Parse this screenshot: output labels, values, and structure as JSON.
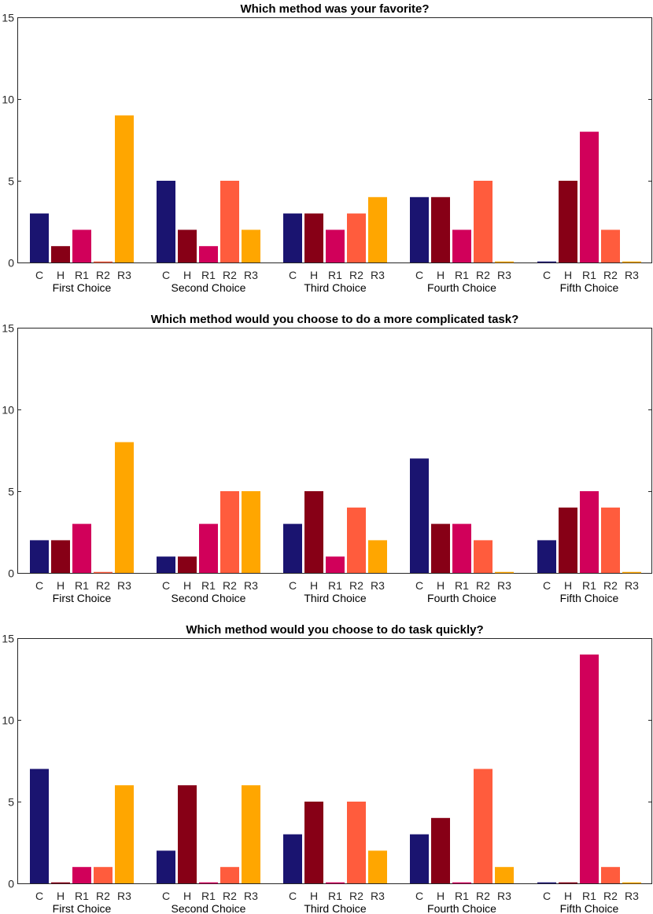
{
  "chart_data": [
    {
      "type": "bar",
      "title": "Which method was your favorite?",
      "groups": [
        "First Choice",
        "Second Choice",
        "Third Choice",
        "Fourth Choice",
        "Fifth Choice"
      ],
      "categories": [
        "C",
        "H",
        "R1",
        "R2",
        "R3"
      ],
      "series": [
        {
          "name": "C",
          "color": "#1a1470",
          "values": [
            3,
            5,
            3,
            4,
            0
          ]
        },
        {
          "name": "H",
          "color": "#870016",
          "values": [
            1,
            2,
            3,
            4,
            5
          ]
        },
        {
          "name": "R1",
          "color": "#d1005a",
          "values": [
            2,
            1,
            2,
            2,
            8
          ]
        },
        {
          "name": "R2",
          "color": "#ff5c3d",
          "values": [
            0,
            5,
            3,
            5,
            2
          ]
        },
        {
          "name": "R3",
          "color": "#ffa600",
          "values": [
            9,
            2,
            4,
            0,
            0
          ]
        }
      ],
      "ylim": [
        0,
        15
      ],
      "yticks": [
        0,
        5,
        10,
        15
      ],
      "xlabel": "",
      "ylabel": ""
    },
    {
      "type": "bar",
      "title": "Which method would you choose to do a more complicated task?",
      "groups": [
        "First Choice",
        "Second Choice",
        "Third Choice",
        "Fourth Choice",
        "Fifth Choice"
      ],
      "categories": [
        "C",
        "H",
        "R1",
        "R2",
        "R3"
      ],
      "series": [
        {
          "name": "C",
          "color": "#1a1470",
          "values": [
            2,
            1,
            3,
            7,
            2
          ]
        },
        {
          "name": "H",
          "color": "#870016",
          "values": [
            2,
            1,
            5,
            3,
            4
          ]
        },
        {
          "name": "R1",
          "color": "#d1005a",
          "values": [
            3,
            3,
            1,
            3,
            5
          ]
        },
        {
          "name": "R2",
          "color": "#ff5c3d",
          "values": [
            0,
            5,
            4,
            2,
            4
          ]
        },
        {
          "name": "R3",
          "color": "#ffa600",
          "values": [
            8,
            5,
            2,
            0,
            0
          ]
        }
      ],
      "ylim": [
        0,
        15
      ],
      "yticks": [
        0,
        5,
        10,
        15
      ],
      "xlabel": "",
      "ylabel": ""
    },
    {
      "type": "bar",
      "title": "Which method would you choose to do task quickly?",
      "groups": [
        "First Choice",
        "Second Choice",
        "Third Choice",
        "Fourth Choice",
        "Fifth Choice"
      ],
      "categories": [
        "C",
        "H",
        "R1",
        "R2",
        "R3"
      ],
      "series": [
        {
          "name": "C",
          "color": "#1a1470",
          "values": [
            7,
            2,
            3,
            3,
            0
          ]
        },
        {
          "name": "H",
          "color": "#870016",
          "values": [
            0,
            6,
            5,
            4,
            0
          ]
        },
        {
          "name": "R1",
          "color": "#d1005a",
          "values": [
            1,
            0,
            0,
            0,
            14
          ]
        },
        {
          "name": "R2",
          "color": "#ff5c3d",
          "values": [
            1,
            1,
            5,
            7,
            1
          ]
        },
        {
          "name": "R3",
          "color": "#ffa600",
          "values": [
            6,
            6,
            2,
            1,
            0
          ]
        }
      ],
      "ylim": [
        0,
        15
      ],
      "yticks": [
        0,
        5,
        10,
        15
      ],
      "xlabel": "",
      "ylabel": ""
    }
  ]
}
